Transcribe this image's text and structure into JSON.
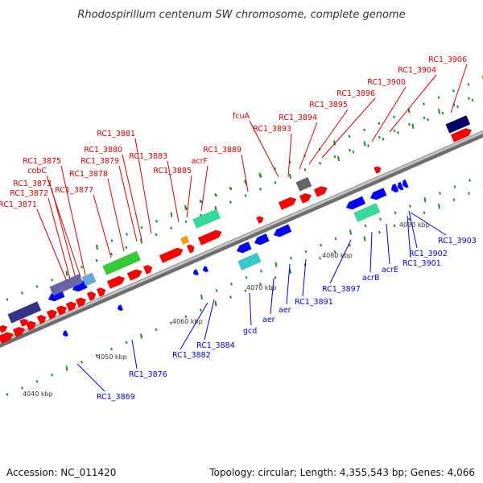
{
  "title": "Rhodospirillum centenum SW chromosome, complete genome",
  "footer": {
    "accession": "Accession: NC_011420",
    "topology": "Topology: circular; Length: 4,355,543 bp; Genes: 4,066"
  },
  "colors": {
    "forward_label": "#cc0000",
    "reverse_label": "#0000cc",
    "forward_gene": "#ff0000",
    "reverse_gene": "#0000ff",
    "backbone": "#9a9a9a",
    "tick": "#228b22"
  },
  "kbp_labels": [
    "4040 kbp",
    "4050 kbp",
    "4060 kbp",
    "4070 kbp",
    "4080 kbp",
    "4090 kbp"
  ],
  "forward_labels": [
    "RC1_3871",
    "RC1_3872",
    "RC1_3873",
    "cobC",
    "RC1_3875",
    "RC1_3877",
    "RC1_3878",
    "RC1_3879",
    "RC1_3880",
    "RC1_3881",
    "RC1_3883",
    "RC1_3885",
    "acrF",
    "RC1_3889",
    "fcuA",
    "RC1_3893",
    "RC1_3894",
    "RC1_3895",
    "RC1_3896",
    "RC1_3900",
    "RC1_3904",
    "RC1_3906"
  ],
  "reverse_labels": [
    "RC1_3869",
    "RC1_3876",
    "RC1_3882",
    "RC1_3884",
    "gcd",
    "aer",
    "aer",
    "RC1_3891",
    "RC1_3897",
    "acrB",
    "acrE",
    "RC1_3901",
    "RC1_3902",
    "RC1_3903"
  ]
}
